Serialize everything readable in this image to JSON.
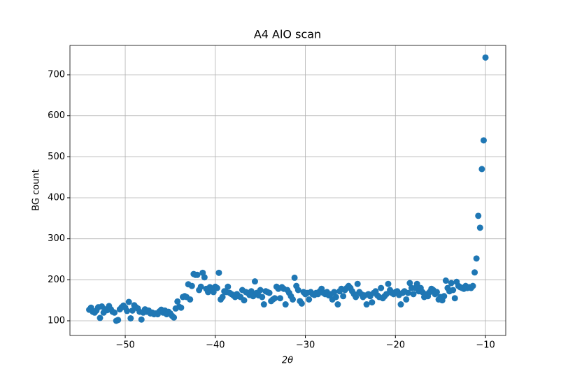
{
  "chart_data": {
    "type": "scatter",
    "title": "A4 AlO scan",
    "xlabel": "2θ",
    "ylabel": "BG count",
    "color": "#1f77b4",
    "grid": true,
    "xlim": [
      -56.14,
      -7.75
    ],
    "ylim": [
      64.2,
      771.6
    ],
    "xticks": [
      {
        "value": -50,
        "label": "−50"
      },
      {
        "value": -40,
        "label": "−40"
      },
      {
        "value": -30,
        "label": "−30"
      },
      {
        "value": -20,
        "label": "−20"
      },
      {
        "value": -10,
        "label": "−10"
      }
    ],
    "yticks": [
      100,
      200,
      300,
      400,
      500,
      600,
      700
    ],
    "x": [
      -54,
      -53.8,
      -53.6,
      -53.4,
      -53.2,
      -53,
      -52.8,
      -52.6,
      -52.4,
      -52.2,
      -52,
      -51.8,
      -51.6,
      -51.4,
      -51.2,
      -51,
      -50.8,
      -50.6,
      -50.4,
      -50.2,
      -50,
      -49.8,
      -49.6,
      -49.4,
      -49.2,
      -49,
      -48.8,
      -48.6,
      -48.4,
      -48.2,
      -48,
      -47.8,
      -47.6,
      -47.4,
      -47.2,
      -47,
      -46.8,
      -46.6,
      -46.4,
      -46.2,
      -46,
      -45.8,
      -45.6,
      -45.4,
      -45.2,
      -45,
      -44.8,
      -44.6,
      -44.4,
      -44.2,
      -44,
      -43.8,
      -43.6,
      -43.4,
      -43.2,
      -43,
      -42.8,
      -42.6,
      -42.4,
      -42.2,
      -42,
      -41.8,
      -41.6,
      -41.4,
      -41.2,
      -41,
      -40.8,
      -40.6,
      -40.4,
      -40.2,
      -40,
      -39.8,
      -39.6,
      -39.4,
      -39.2,
      -39,
      -38.8,
      -38.6,
      -38.4,
      -38.2,
      -38,
      -37.8,
      -37.6,
      -37.4,
      -37.2,
      -37,
      -36.8,
      -36.6,
      -36.4,
      -36.2,
      -36,
      -35.8,
      -35.6,
      -35.4,
      -35.2,
      -35,
      -34.8,
      -34.6,
      -34.4,
      -34.2,
      -34,
      -33.8,
      -33.6,
      -33.4,
      -33.2,
      -33,
      -32.8,
      -32.6,
      -32.4,
      -32.2,
      -32,
      -31.8,
      -31.6,
      -31.4,
      -31.2,
      -31,
      -30.8,
      -30.6,
      -30.4,
      -30.2,
      -30,
      -29.8,
      -29.6,
      -29.4,
      -29.2,
      -29,
      -28.8,
      -28.6,
      -28.4,
      -28.2,
      -28,
      -27.8,
      -27.6,
      -27.4,
      -27.2,
      -27,
      -26.8,
      -26.6,
      -26.4,
      -26.2,
      -26,
      -25.8,
      -25.6,
      -25.4,
      -25.2,
      -25,
      -24.8,
      -24.6,
      -24.4,
      -24.2,
      -24,
      -23.8,
      -23.6,
      -23.4,
      -23.2,
      -23,
      -22.8,
      -22.6,
      -22.4,
      -22.2,
      -22,
      -21.8,
      -21.6,
      -21.4,
      -21.2,
      -21,
      -20.8,
      -20.6,
      -20.4,
      -20.2,
      -20,
      -19.8,
      -19.6,
      -19.4,
      -19.2,
      -19,
      -18.8,
      -18.6,
      -18.4,
      -18.2,
      -18,
      -17.8,
      -17.6,
      -17.4,
      -17.2,
      -17,
      -16.8,
      -16.6,
      -16.4,
      -16.2,
      -16,
      -15.8,
      -15.6,
      -15.4,
      -15.2,
      -15,
      -14.8,
      -14.6,
      -14.4,
      -14.2,
      -14,
      -13.8,
      -13.6,
      -13.4,
      -13.2,
      -13,
      -12.8,
      -12.6,
      -12.4,
      -12.2,
      -12,
      -11.8,
      -11.6,
      -11.4,
      -11.2,
      -11,
      -10.8,
      -10.6,
      -10.4,
      -10.2,
      -10
    ],
    "values": [
      127,
      132,
      122,
      120,
      125,
      133,
      107,
      135,
      120,
      128,
      126,
      136,
      128,
      122,
      120,
      100,
      102,
      128,
      133,
      137,
      132,
      124,
      146,
      106,
      125,
      138,
      133,
      130,
      122,
      103,
      120,
      128,
      122,
      125,
      118,
      120,
      116,
      118,
      116,
      123,
      127,
      120,
      125,
      116,
      122,
      118,
      112,
      108,
      130,
      147,
      134,
      132,
      158,
      160,
      158,
      189,
      152,
      185,
      214,
      212,
      212,
      175,
      183,
      217,
      206,
      178,
      170,
      182,
      178,
      170,
      183,
      180,
      217,
      152,
      158,
      172,
      170,
      183,
      168,
      165,
      162,
      158,
      165,
      160,
      158,
      175,
      150,
      170,
      168,
      163,
      172,
      160,
      196,
      168,
      162,
      175,
      158,
      140,
      172,
      170,
      168,
      148,
      152,
      155,
      183,
      178,
      155,
      182,
      178,
      140,
      175,
      168,
      160,
      152,
      205,
      185,
      175,
      148,
      142,
      170,
      165,
      168,
      152,
      170,
      165,
      163,
      168,
      165,
      172,
      178,
      168,
      165,
      170,
      162,
      165,
      152,
      170,
      158,
      140,
      172,
      178,
      160,
      175,
      180,
      185,
      180,
      172,
      165,
      158,
      190,
      170,
      165,
      158,
      162,
      140,
      165,
      160,
      145,
      168,
      172,
      162,
      158,
      180,
      155,
      160,
      165,
      190,
      175,
      168,
      165,
      170,
      172,
      163,
      140,
      168,
      172,
      152,
      168,
      192,
      180,
      165,
      180,
      190,
      172,
      180,
      170,
      158,
      165,
      160,
      170,
      178,
      175,
      165,
      170,
      152,
      158,
      150,
      160,
      198,
      180,
      172,
      192,
      175,
      155,
      195,
      185,
      182,
      180,
      178,
      185,
      180,
      182,
      180,
      185,
      218,
      252,
      356,
      327,
      470,
      540,
      742
    ]
  }
}
